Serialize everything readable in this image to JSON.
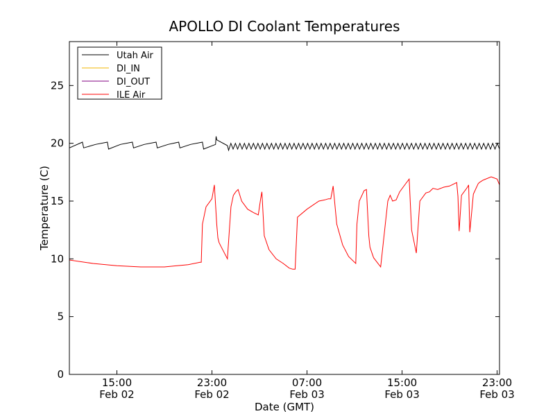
{
  "chart_data": {
    "type": "line",
    "title": "APOLLO DI Coolant Temperatures",
    "xlabel": "Date (GMT)",
    "ylabel": "Temperature (C)",
    "x_unit": "hours since Feb 02 11:00 GMT",
    "xlim": [
      0,
      36.2
    ],
    "ylim": [
      0,
      28.8
    ],
    "yticks": [
      0,
      5,
      10,
      15,
      20,
      25
    ],
    "xticks": [
      {
        "value": 4,
        "time": "15:00",
        "date": "Feb 02"
      },
      {
        "value": 12,
        "time": "23:00",
        "date": "Feb 02"
      },
      {
        "value": 20,
        "time": "07:00",
        "date": "Feb 03"
      },
      {
        "value": 28,
        "time": "15:00",
        "date": "Feb 03"
      },
      {
        "value": 36,
        "time": "23:00",
        "date": "Feb 03"
      }
    ],
    "grid": false,
    "legend_position": "top-left",
    "series": [
      {
        "name": "Utah Air",
        "color": "#000000",
        "x": [
          0,
          1.1,
          1.2,
          2.2,
          3.2,
          3.3,
          4.3,
          5.3,
          5.4,
          6.3,
          7.3,
          7.4,
          8.3,
          9.2,
          9.3,
          10.2,
          11.2,
          11.3,
          12.3,
          12.35,
          12.4,
          13.3,
          13.4
        ],
        "values": [
          19.6,
          20.1,
          19.6,
          19.9,
          20.1,
          19.5,
          19.9,
          20.1,
          19.6,
          19.9,
          20.1,
          19.6,
          19.9,
          20.1,
          19.6,
          19.9,
          20.1,
          19.5,
          19.9,
          20.6,
          20.3,
          19.8,
          19.4
        ],
        "oscillation": {
          "x_start": 13.4,
          "x_end": 36.2,
          "period": 0.38,
          "min": 19.5,
          "max": 20.0
        }
      },
      {
        "name": "DI_IN",
        "color": "#f0b400",
        "x": [],
        "values": []
      },
      {
        "name": "DI_OUT",
        "color": "#800080",
        "x": [],
        "values": []
      },
      {
        "name": "ILE Air",
        "color": "#ff0000",
        "x": [
          0,
          2,
          4,
          6,
          8,
          10,
          11.0,
          11.1,
          11.2,
          11.5,
          12.0,
          12.2,
          12.4,
          12.5,
          12.6,
          12.8,
          13.3,
          13.6,
          13.8,
          14.0,
          14.2,
          14.5,
          15.0,
          15.5,
          15.9,
          16.1,
          16.2,
          16.4,
          16.8,
          17.4,
          18.0,
          18.5,
          18.8,
          19.0,
          19.2,
          20.0,
          21.0,
          21.5,
          21.8,
          22.0,
          22.2,
          22.5,
          23.0,
          23.5,
          24.1,
          24.2,
          24.4,
          24.8,
          25.0,
          25.2,
          25.3,
          25.6,
          26.2,
          26.8,
          27.0,
          27.2,
          27.5,
          27.8,
          28.3,
          28.6,
          28.8,
          29.0,
          29.2,
          29.5,
          30.0,
          30.3,
          30.4,
          30.6,
          31.0,
          31.5,
          32.0,
          32.6,
          32.7,
          32.8,
          33.0,
          33.5,
          33.6,
          33.7,
          34.0,
          34.4,
          34.5,
          34.8,
          35.5,
          36.0,
          36.2
        ],
        "values": [
          9.9,
          9.6,
          9.4,
          9.3,
          9.3,
          9.5,
          9.7,
          9.7,
          13.0,
          14.5,
          15.2,
          16.4,
          13.0,
          11.8,
          11.4,
          11.0,
          10.0,
          14.5,
          15.5,
          15.8,
          16.0,
          15.0,
          14.3,
          14.0,
          13.8,
          15.2,
          15.8,
          12.0,
          10.8,
          10.0,
          9.6,
          9.2,
          9.1,
          9.1,
          13.6,
          14.3,
          15.0,
          15.1,
          15.2,
          15.2,
          16.3,
          13.0,
          11.2,
          10.2,
          9.6,
          13.0,
          15.0,
          15.9,
          16.0,
          12.0,
          11.0,
          10.1,
          9.3,
          15.0,
          15.5,
          15.0,
          15.1,
          15.8,
          16.5,
          16.9,
          12.5,
          11.5,
          10.5,
          15.0,
          15.7,
          15.8,
          15.9,
          16.1,
          16.0,
          16.2,
          16.3,
          16.6,
          15.4,
          12.4,
          15.5,
          16.2,
          16.4,
          12.3,
          15.6,
          16.5,
          16.6,
          16.8,
          17.1,
          16.9,
          16.4
        ]
      }
    ]
  }
}
